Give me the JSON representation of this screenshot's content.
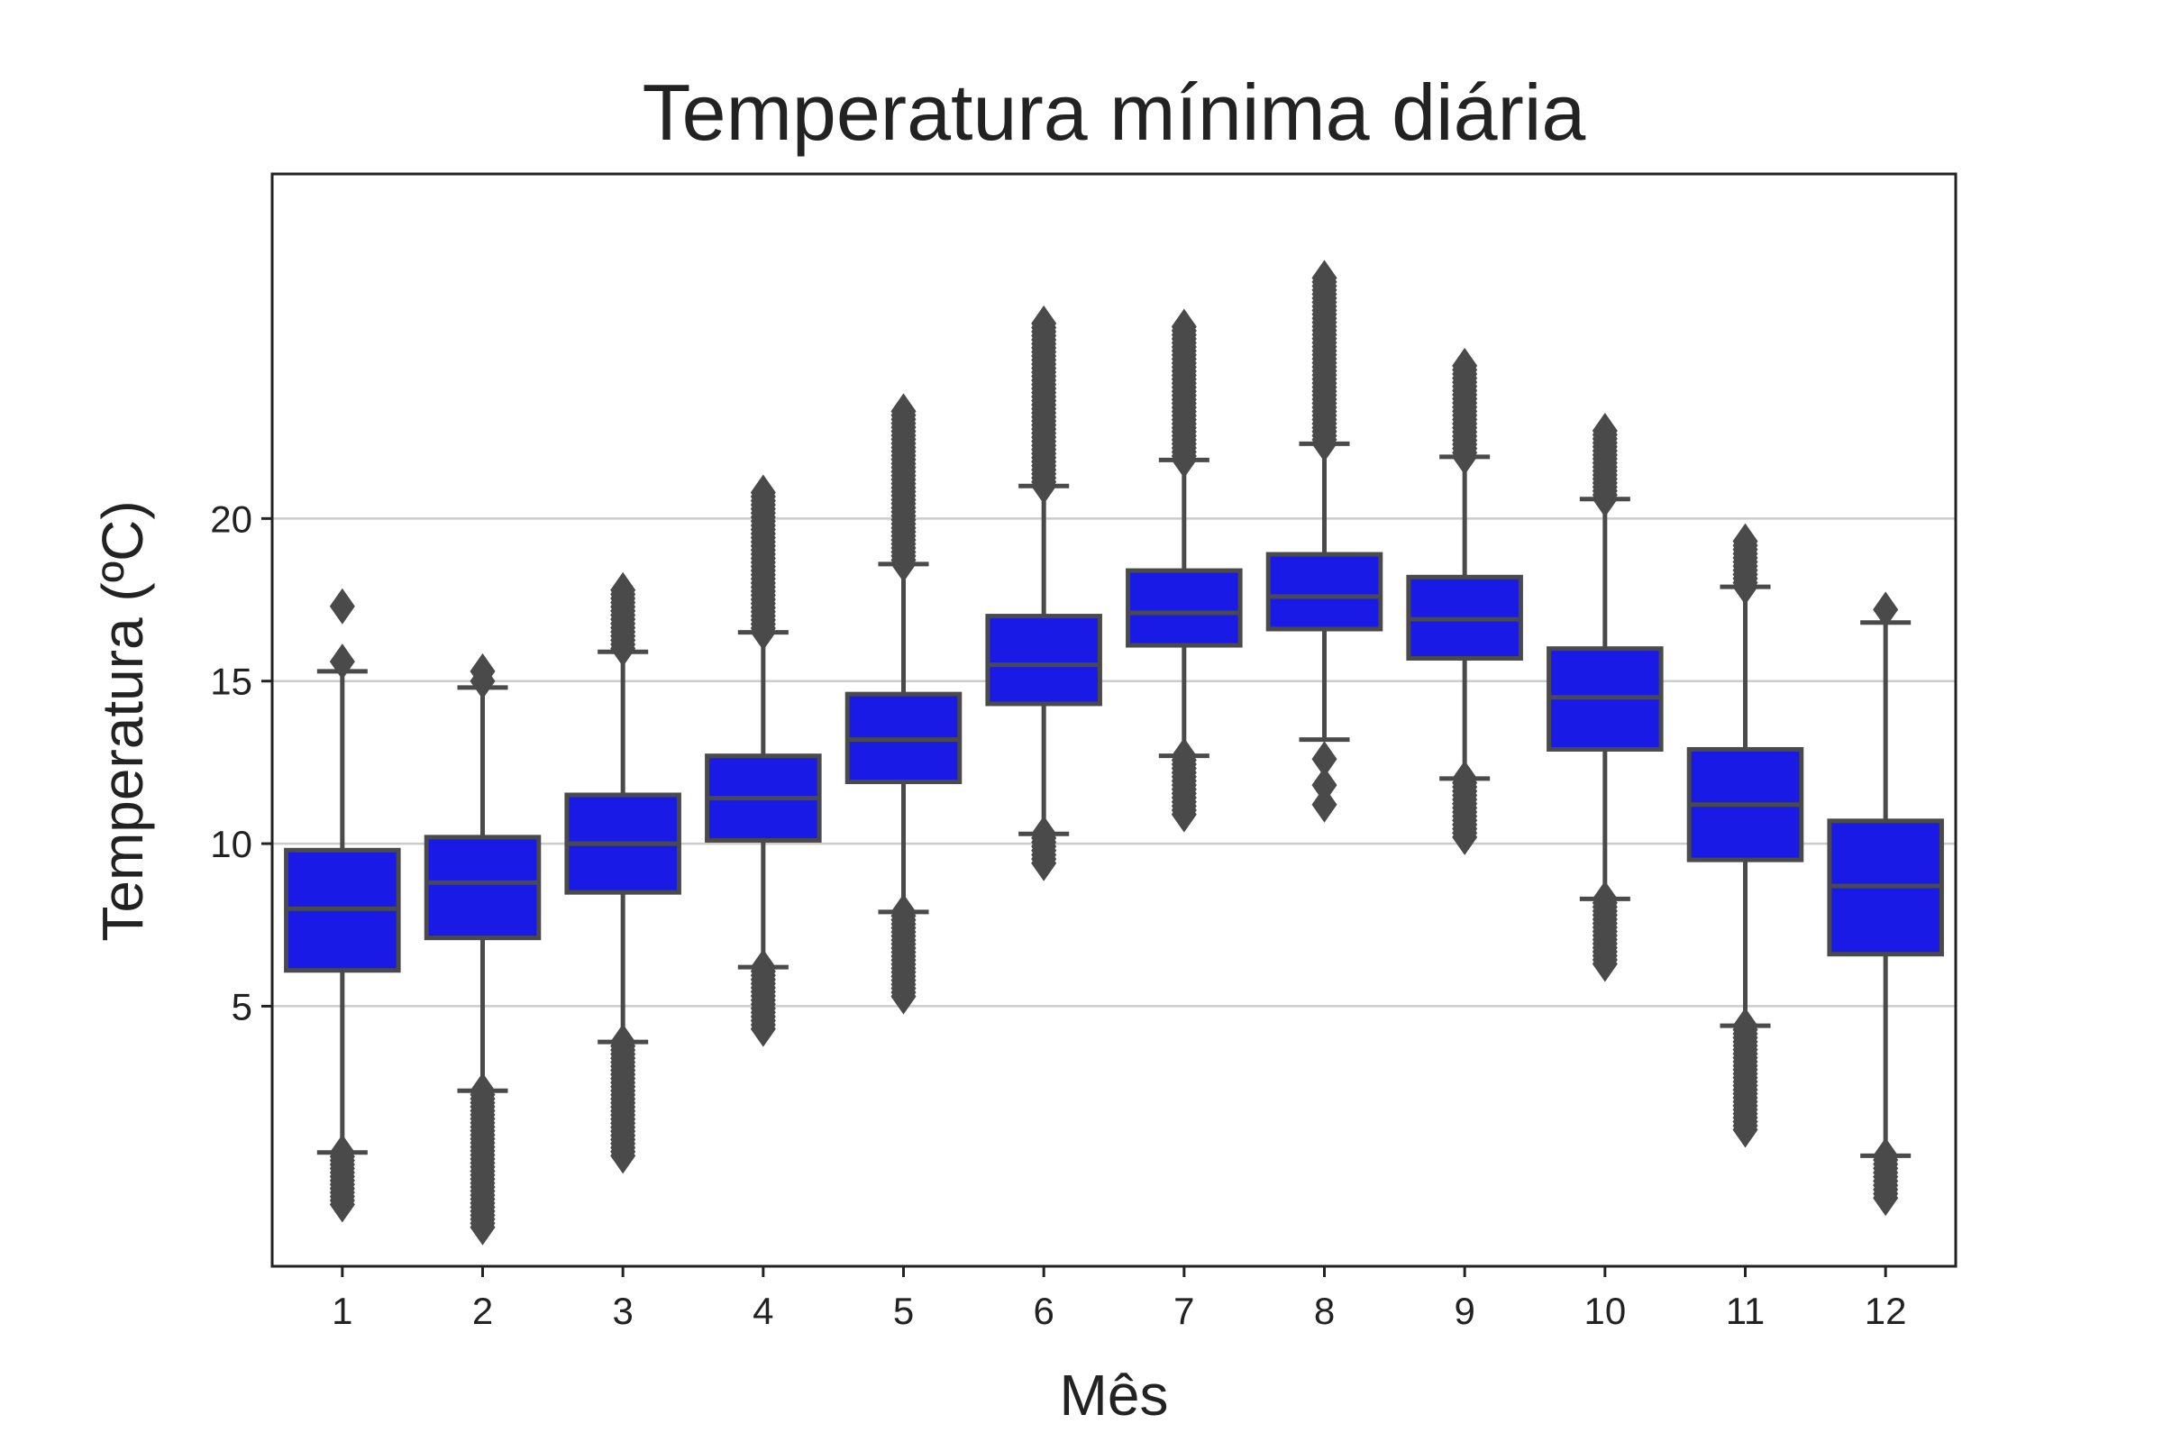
{
  "chart_data": {
    "type": "box",
    "title": "Temperatura mínima diária",
    "xlabel": "Mês",
    "ylabel": "Temperatura (ºC)",
    "ylim": [
      -3.0,
      30.6
    ],
    "yticks": [
      5,
      10,
      15,
      20
    ],
    "grid": "horizontal",
    "box_color": "#1a1ae6",
    "edge_color": "#4a4a4a",
    "grid_color": "#cccccc",
    "categories": [
      "1",
      "2",
      "3",
      "4",
      "5",
      "6",
      "7",
      "8",
      "9",
      "10",
      "11",
      "12"
    ],
    "boxes": [
      {
        "month": "1",
        "whisker_low": 0.5,
        "q1": 6.1,
        "median": 8.0,
        "q3": 9.8,
        "whisker_high": 15.3,
        "outliers_low_range": [
          -1.1,
          0.5
        ],
        "outliers_high": [
          15.6,
          17.3
        ]
      },
      {
        "month": "2",
        "whisker_low": 2.4,
        "q1": 7.1,
        "median": 8.8,
        "q3": 10.2,
        "whisker_high": 14.8,
        "outliers_low_range": [
          -1.8,
          2.4
        ],
        "outliers_high": [
          15.0,
          15.3
        ]
      },
      {
        "month": "3",
        "whisker_low": 3.9,
        "q1": 8.5,
        "median": 10.0,
        "q3": 11.5,
        "whisker_high": 15.9,
        "outliers_low_range": [
          0.4,
          3.9
        ],
        "outliers_high_range": [
          16.0,
          17.8
        ]
      },
      {
        "month": "4",
        "whisker_low": 6.2,
        "q1": 10.1,
        "median": 11.4,
        "q3": 12.7,
        "whisker_high": 16.5,
        "outliers_low_range": [
          4.3,
          6.2
        ],
        "outliers_high_range": [
          16.5,
          20.8
        ]
      },
      {
        "month": "5",
        "whisker_low": 7.9,
        "q1": 11.9,
        "median": 13.2,
        "q3": 14.6,
        "whisker_high": 18.6,
        "outliers_low_range": [
          5.3,
          7.9
        ],
        "outliers_high_range": [
          18.6,
          23.3
        ]
      },
      {
        "month": "6",
        "whisker_low": 10.3,
        "q1": 14.3,
        "median": 15.5,
        "q3": 17.0,
        "whisker_high": 21.0,
        "outliers_low_range": [
          9.4,
          10.3
        ],
        "outliers_high_range": [
          21.0,
          26.0
        ]
      },
      {
        "month": "7",
        "whisker_low": 12.7,
        "q1": 16.1,
        "median": 17.1,
        "q3": 18.4,
        "whisker_high": 21.8,
        "outliers_low_range": [
          10.9,
          12.7
        ],
        "outliers_high_range": [
          21.8,
          25.9
        ]
      },
      {
        "month": "8",
        "whisker_low": 13.2,
        "q1": 16.6,
        "median": 17.6,
        "q3": 18.9,
        "whisker_high": 22.3,
        "outliers_low": [
          11.2,
          11.8,
          12.6
        ],
        "outliers_high_range": [
          22.3,
          27.4
        ]
      },
      {
        "month": "9",
        "whisker_low": 12.0,
        "q1": 15.7,
        "median": 16.9,
        "q3": 18.2,
        "whisker_high": 21.9,
        "outliers_low_range": [
          10.2,
          12.0
        ],
        "outliers_high_range": [
          21.9,
          24.7
        ]
      },
      {
        "month": "10",
        "whisker_low": 8.3,
        "q1": 12.9,
        "median": 14.5,
        "q3": 16.0,
        "whisker_high": 20.6,
        "outliers_low_range": [
          6.3,
          8.3
        ],
        "outliers_high_range": [
          20.6,
          22.7
        ]
      },
      {
        "month": "11",
        "whisker_low": 4.4,
        "q1": 9.5,
        "median": 11.2,
        "q3": 12.9,
        "whisker_high": 17.9,
        "outliers_low_range": [
          1.2,
          4.4
        ],
        "outliers_high_range": [
          17.9,
          19.3
        ]
      },
      {
        "month": "12",
        "whisker_low": 0.4,
        "q1": 6.6,
        "median": 8.7,
        "q3": 10.7,
        "whisker_high": 16.8,
        "outliers_low_range": [
          -0.9,
          0.4
        ],
        "outliers_high": [
          17.2
        ]
      }
    ]
  }
}
